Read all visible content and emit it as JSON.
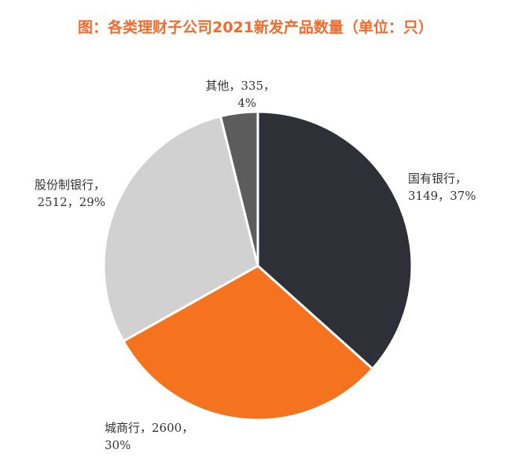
{
  "chart_data": {
    "type": "pie",
    "title": "图：各类理财子公司2021新发产品数量（单位：只）",
    "title_color": "#f26b2a",
    "slices": [
      {
        "name": "国有银行",
        "value": 3149,
        "percent": "37%",
        "value_text": "3149，",
        "color": "#2e3038"
      },
      {
        "name": "城商行",
        "value": 2600,
        "percent": "30%",
        "value_text": "2600，",
        "color": "#f5731f"
      },
      {
        "name": "股份制银行",
        "value": 2512,
        "percent": "29%",
        "value_text": "2512，",
        "color": "#d1d1d1"
      },
      {
        "name": "其他",
        "value": 335,
        "percent": "4%",
        "value_text": "335，",
        "color": "#5c5c5c"
      }
    ]
  }
}
